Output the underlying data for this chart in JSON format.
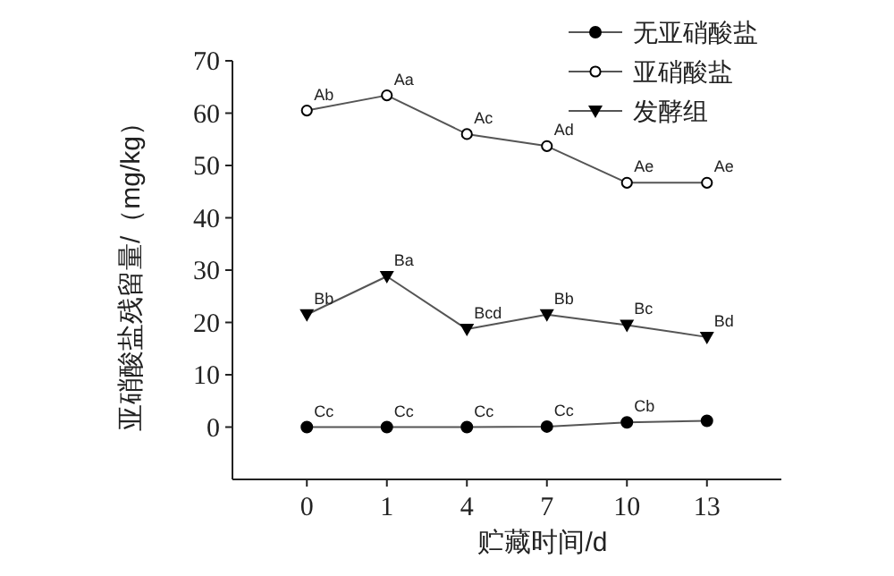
{
  "chart_data": {
    "type": "line",
    "xlabel": "贮藏时间/d",
    "ylabel": "亚硝酸盐残留量/（mg/kg）",
    "categories": [
      "0",
      "1",
      "4",
      "7",
      "10",
      "13"
    ],
    "series": [
      {
        "name": "无亚硝酸盐",
        "color": "#000000",
        "marker": "circle",
        "values": [
          0,
          0,
          0,
          0.1,
          0.9,
          1.2
        ],
        "value_labels": [
          "Cc",
          "Cc",
          "Cc",
          "Cc",
          "Cb",
          null
        ]
      },
      {
        "name": "亚硝酸盐",
        "color": "#000000",
        "marker": "open_circle",
        "values": [
          60.5,
          63.4,
          56.0,
          53.7,
          46.7,
          46.7
        ],
        "value_labels": [
          "Ab",
          "Aa",
          "Ac",
          "Ad",
          "Ae",
          "Ae"
        ]
      },
      {
        "name": "发酵组",
        "color": "#000000",
        "marker": "triangle_down",
        "values": [
          21.5,
          28.8,
          18.7,
          21.5,
          19.5,
          17.2
        ],
        "value_labels": [
          "Bb",
          "Ba",
          "Bcd",
          "Bb",
          "Bc",
          "Bd"
        ]
      }
    ],
    "ylim": [
      -10,
      70
    ],
    "yticks": [
      0,
      10,
      20,
      30,
      40,
      50,
      60,
      70
    ],
    "legend": "top right",
    "grid": false
  }
}
